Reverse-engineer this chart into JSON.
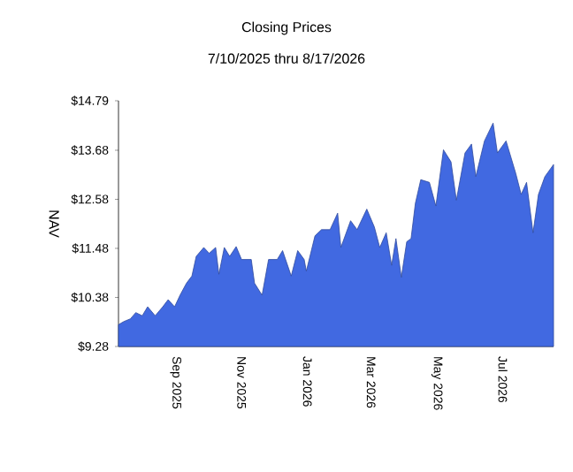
{
  "chart_data": {
    "type": "area",
    "title": "Closing Prices",
    "subtitle": "7/10/2025 thru 8/17/2026",
    "ylabel": "NAV",
    "xlim": [
      "2025-07-10",
      "2026-08-17"
    ],
    "xticks": [
      {
        "value": "2025-09-01",
        "label": "Sep 2025"
      },
      {
        "value": "2025-11-01",
        "label": "Nov 2025"
      },
      {
        "value": "2026-01-01",
        "label": "Jan 2026"
      },
      {
        "value": "2026-03-01",
        "label": "Mar 2026"
      },
      {
        "value": "2026-05-01",
        "label": "May 2026"
      },
      {
        "value": "2026-07-01",
        "label": "Jul 2026"
      }
    ],
    "ylim": [
      9.28,
      14.79
    ],
    "yticks": [
      {
        "value": 9.28,
        "label": "$9.28"
      },
      {
        "value": 10.38,
        "label": "$10.38"
      },
      {
        "value": 11.48,
        "label": "$11.48"
      },
      {
        "value": 12.58,
        "label": "$12.58"
      },
      {
        "value": 13.68,
        "label": "$13.68"
      },
      {
        "value": 14.79,
        "label": "$14.79"
      }
    ],
    "grid": false,
    "x": [
      "2025-07-10",
      "2025-07-15",
      "2025-07-21",
      "2025-07-26",
      "2025-08-01",
      "2025-08-06",
      "2025-08-13",
      "2025-08-20",
      "2025-08-25",
      "2025-08-31",
      "2025-09-05",
      "2025-09-11",
      "2025-09-16",
      "2025-09-20",
      "2025-09-27",
      "2025-10-02",
      "2025-10-08",
      "2025-10-11",
      "2025-10-16",
      "2025-10-21",
      "2025-10-27",
      "2025-11-01",
      "2025-11-10",
      "2025-11-13",
      "2025-11-20",
      "2025-11-26",
      "2025-12-04",
      "2025-12-09",
      "2025-12-17",
      "2025-12-23",
      "2025-12-29",
      "2025-12-31",
      "2026-01-08",
      "2026-01-14",
      "2026-01-22",
      "2026-01-29",
      "2026-02-01",
      "2026-02-10",
      "2026-02-16",
      "2026-02-25",
      "2026-03-04",
      "2026-03-09",
      "2026-03-15",
      "2026-03-20",
      "2026-03-24",
      "2026-03-29",
      "2026-04-03",
      "2026-04-07",
      "2026-04-11",
      "2026-04-16",
      "2026-04-24",
      "2026-04-30",
      "2026-05-07",
      "2026-05-14",
      "2026-05-19",
      "2026-05-27",
      "2026-06-02",
      "2026-06-06",
      "2026-06-14",
      "2026-06-22",
      "2026-06-26",
      "2026-07-04",
      "2026-07-13",
      "2026-07-18",
      "2026-07-23",
      "2026-07-29",
      "2026-08-03",
      "2026-08-09",
      "2026-08-17"
    ],
    "series": [
      {
        "color": "#4169e1",
        "values": [
          9.77,
          9.84,
          9.9,
          10.04,
          9.97,
          10.17,
          9.97,
          10.17,
          10.33,
          10.17,
          10.43,
          10.7,
          10.86,
          11.3,
          11.5,
          11.37,
          11.5,
          10.9,
          11.5,
          11.3,
          11.52,
          11.23,
          11.23,
          10.7,
          10.43,
          11.23,
          11.23,
          11.43,
          10.86,
          11.43,
          11.23,
          10.97,
          11.76,
          11.9,
          11.9,
          12.27,
          11.5,
          12.1,
          11.9,
          12.36,
          11.96,
          11.5,
          11.83,
          11.1,
          11.7,
          10.83,
          11.63,
          11.7,
          12.49,
          13.02,
          12.96,
          12.43,
          13.69,
          13.42,
          12.56,
          13.62,
          13.82,
          13.09,
          13.89,
          14.29,
          13.62,
          13.89,
          13.16,
          12.69,
          12.96,
          11.83,
          12.69,
          13.09,
          13.36
        ]
      }
    ]
  }
}
